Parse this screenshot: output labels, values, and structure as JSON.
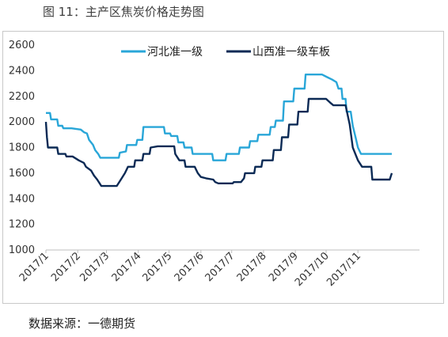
{
  "figure": {
    "title": "图 11：主产区焦炭价格走势图",
    "source": "数据来源：一德期货"
  },
  "chart_data": {
    "type": "line",
    "title": "",
    "xlabel": "",
    "ylabel": "",
    "ylim": [
      1000,
      2600
    ],
    "yticks": [
      1000,
      1200,
      1400,
      1600,
      1800,
      2000,
      2200,
      2400,
      2600
    ],
    "xlim": [
      "2017-01-01",
      "2017-12-31"
    ],
    "xticks": [
      "2017/1",
      "2017/2",
      "2017/3",
      "2017/4",
      "2017/5",
      "2017/6",
      "2017/7",
      "2017/8",
      "2017/9",
      "2017/10",
      "2017/11"
    ],
    "xtick_dates": [
      "2017-01-01",
      "2017-02-01",
      "2017-03-01",
      "2017-04-01",
      "2017-05-01",
      "2017-06-01",
      "2017-07-01",
      "2017-08-01",
      "2017-09-01",
      "2017-10-01",
      "2017-11-01"
    ],
    "grid": false,
    "legend": "top-center",
    "series": [
      {
        "name": "河北准一级",
        "color": "#29a6d8",
        "points": [
          [
            "2017-01-01",
            2070
          ],
          [
            "2017-01-05",
            2070
          ],
          [
            "2017-01-06",
            2020
          ],
          [
            "2017-01-12",
            2020
          ],
          [
            "2017-01-13",
            1970
          ],
          [
            "2017-01-17",
            1970
          ],
          [
            "2017-01-18",
            1950
          ],
          [
            "2017-01-26",
            1950
          ],
          [
            "2017-02-04",
            1940
          ],
          [
            "2017-02-07",
            1920
          ],
          [
            "2017-02-10",
            1910
          ],
          [
            "2017-02-12",
            1860
          ],
          [
            "2017-02-16",
            1820
          ],
          [
            "2017-02-18",
            1780
          ],
          [
            "2017-02-21",
            1750
          ],
          [
            "2017-02-23",
            1720
          ],
          [
            "2017-03-13",
            1720
          ],
          [
            "2017-03-14",
            1760
          ],
          [
            "2017-03-20",
            1770
          ],
          [
            "2017-03-21",
            1820
          ],
          [
            "2017-03-30",
            1820
          ],
          [
            "2017-03-31",
            1860
          ],
          [
            "2017-04-05",
            1860
          ],
          [
            "2017-04-06",
            1960
          ],
          [
            "2017-04-26",
            1960
          ],
          [
            "2017-04-27",
            1910
          ],
          [
            "2017-05-02",
            1910
          ],
          [
            "2017-05-03",
            1890
          ],
          [
            "2017-05-09",
            1890
          ],
          [
            "2017-05-10",
            1840
          ],
          [
            "2017-05-15",
            1840
          ],
          [
            "2017-05-16",
            1800
          ],
          [
            "2017-05-23",
            1800
          ],
          [
            "2017-05-24",
            1750
          ],
          [
            "2017-06-12",
            1750
          ],
          [
            "2017-06-13",
            1700
          ],
          [
            "2017-06-25",
            1700
          ],
          [
            "2017-06-26",
            1750
          ],
          [
            "2017-07-08",
            1750
          ],
          [
            "2017-07-09",
            1800
          ],
          [
            "2017-07-18",
            1800
          ],
          [
            "2017-07-19",
            1850
          ],
          [
            "2017-07-26",
            1850
          ],
          [
            "2017-07-27",
            1900
          ],
          [
            "2017-08-07",
            1900
          ],
          [
            "2017-08-08",
            1960
          ],
          [
            "2017-08-12",
            1960
          ],
          [
            "2017-08-13",
            2010
          ],
          [
            "2017-08-20",
            2010
          ],
          [
            "2017-08-21",
            2160
          ],
          [
            "2017-08-30",
            2160
          ],
          [
            "2017-08-31",
            2260
          ],
          [
            "2017-09-10",
            2260
          ],
          [
            "2017-09-11",
            2370
          ],
          [
            "2017-09-27",
            2370
          ],
          [
            "2017-10-02",
            2350
          ],
          [
            "2017-10-07",
            2330
          ],
          [
            "2017-10-11",
            2310
          ],
          [
            "2017-10-13",
            2260
          ],
          [
            "2017-10-16",
            2260
          ],
          [
            "2017-10-17",
            2180
          ],
          [
            "2017-10-20",
            2180
          ],
          [
            "2017-10-21",
            2080
          ],
          [
            "2017-10-25",
            2080
          ],
          [
            "2017-10-27",
            1970
          ],
          [
            "2017-10-30",
            1870
          ],
          [
            "2017-11-01",
            1800
          ],
          [
            "2017-11-04",
            1750
          ],
          [
            "2017-12-04",
            1750
          ]
        ]
      },
      {
        "name": "山西准一级车板",
        "color": "#0b2a55",
        "points": [
          [
            "2017-01-01",
            2000
          ],
          [
            "2017-01-02",
            1880
          ],
          [
            "2017-01-03",
            1800
          ],
          [
            "2017-01-12",
            1800
          ],
          [
            "2017-01-13",
            1750
          ],
          [
            "2017-01-20",
            1750
          ],
          [
            "2017-01-21",
            1730
          ],
          [
            "2017-01-27",
            1730
          ],
          [
            "2017-02-02",
            1700
          ],
          [
            "2017-02-07",
            1680
          ],
          [
            "2017-02-09",
            1650
          ],
          [
            "2017-02-14",
            1620
          ],
          [
            "2017-02-17",
            1580
          ],
          [
            "2017-02-20",
            1550
          ],
          [
            "2017-02-24",
            1500
          ],
          [
            "2017-03-11",
            1500
          ],
          [
            "2017-03-15",
            1550
          ],
          [
            "2017-03-19",
            1600
          ],
          [
            "2017-03-22",
            1650
          ],
          [
            "2017-03-28",
            1650
          ],
          [
            "2017-03-29",
            1700
          ],
          [
            "2017-04-05",
            1700
          ],
          [
            "2017-04-06",
            1750
          ],
          [
            "2017-04-12",
            1750
          ],
          [
            "2017-04-13",
            1800
          ],
          [
            "2017-04-20",
            1810
          ],
          [
            "2017-05-06",
            1810
          ],
          [
            "2017-05-07",
            1750
          ],
          [
            "2017-05-11",
            1700
          ],
          [
            "2017-05-16",
            1700
          ],
          [
            "2017-05-17",
            1650
          ],
          [
            "2017-05-26",
            1650
          ],
          [
            "2017-05-29",
            1600
          ],
          [
            "2017-06-01",
            1570
          ],
          [
            "2017-06-06",
            1560
          ],
          [
            "2017-06-13",
            1550
          ],
          [
            "2017-06-15",
            1530
          ],
          [
            "2017-06-18",
            1520
          ],
          [
            "2017-07-02",
            1520
          ],
          [
            "2017-07-03",
            1530
          ],
          [
            "2017-07-10",
            1530
          ],
          [
            "2017-07-13",
            1560
          ],
          [
            "2017-07-14",
            1600
          ],
          [
            "2017-07-23",
            1600
          ],
          [
            "2017-07-24",
            1650
          ],
          [
            "2017-07-30",
            1650
          ],
          [
            "2017-07-31",
            1700
          ],
          [
            "2017-08-10",
            1700
          ],
          [
            "2017-08-11",
            1780
          ],
          [
            "2017-08-18",
            1780
          ],
          [
            "2017-08-19",
            1880
          ],
          [
            "2017-08-25",
            1880
          ],
          [
            "2017-08-26",
            1980
          ],
          [
            "2017-09-03",
            1980
          ],
          [
            "2017-09-04",
            2080
          ],
          [
            "2017-09-13",
            2080
          ],
          [
            "2017-09-14",
            2180
          ],
          [
            "2017-10-01",
            2180
          ],
          [
            "2017-10-05",
            2150
          ],
          [
            "2017-10-08",
            2130
          ],
          [
            "2017-10-20",
            2130
          ],
          [
            "2017-10-24",
            1980
          ],
          [
            "2017-10-27",
            1800
          ],
          [
            "2017-11-01",
            1700
          ],
          [
            "2017-11-05",
            1650
          ],
          [
            "2017-11-14",
            1650
          ],
          [
            "2017-11-15",
            1550
          ],
          [
            "2017-12-02",
            1550
          ],
          [
            "2017-12-04",
            1600
          ]
        ]
      }
    ]
  }
}
